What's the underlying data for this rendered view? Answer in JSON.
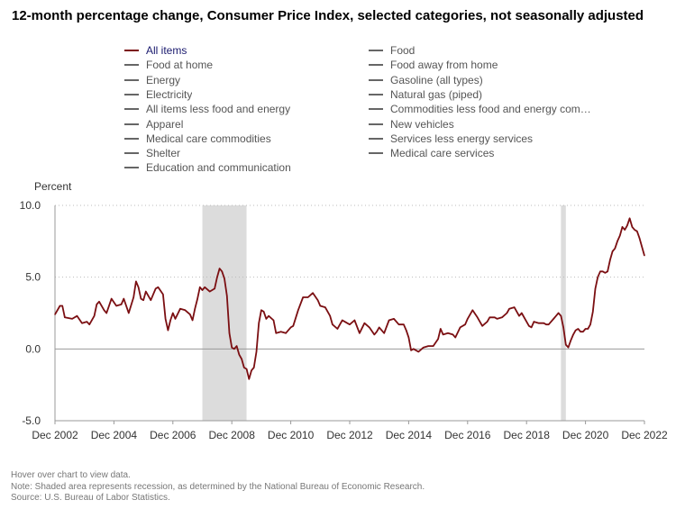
{
  "title": "12-month percentage change, Consumer Price Index, selected categories, not seasonally adjusted",
  "legend": [
    {
      "label": "All items",
      "active": true
    },
    {
      "label": "Food",
      "active": false
    },
    {
      "label": "Food at home",
      "active": false
    },
    {
      "label": "Food away from home",
      "active": false
    },
    {
      "label": "Energy",
      "active": false
    },
    {
      "label": "Gasoline (all types)",
      "active": false
    },
    {
      "label": "Electricity",
      "active": false
    },
    {
      "label": "Natural gas (piped)",
      "active": false
    },
    {
      "label": "All items less food and energy",
      "active": false
    },
    {
      "label": "Commodities less food and energy com…",
      "active": false
    },
    {
      "label": "Apparel",
      "active": false
    },
    {
      "label": "New vehicles",
      "active": false
    },
    {
      "label": "Medical care commodities",
      "active": false
    },
    {
      "label": "Services less energy services",
      "active": false
    },
    {
      "label": "Shelter",
      "active": false
    },
    {
      "label": "Medical care services",
      "active": false
    },
    {
      "label": "Education and communication",
      "active": false
    }
  ],
  "footnotes": {
    "hover": "Hover over chart to view data.",
    "note": "Note: Shaded area represents recession, as determined by the National Bureau of Economic Research.",
    "source": "Source: U.S. Bureau of Labor Statistics."
  },
  "colors": {
    "series": "#7b0f12",
    "recession": "#dcdcdc",
    "grid": "#bbbbbb"
  },
  "chart_data": {
    "type": "line",
    "ylabel": "Percent",
    "ylim": [
      -5,
      10
    ],
    "yticks": [
      "10.0",
      "5.0",
      "0.0",
      "-5.0"
    ],
    "yticks_values": [
      10,
      5,
      0,
      -5
    ],
    "xlim": [
      "2002-12",
      "2022-12"
    ],
    "xticks": [
      "Dec 2002",
      "Dec 2004",
      "Dec 2006",
      "Dec 2008",
      "Dec 2010",
      "Dec 2012",
      "Dec 2014",
      "Dec 2016",
      "Dec 2018",
      "Dec 2020",
      "Dec 2022"
    ],
    "xticks_dates": [
      "2002-12",
      "2004-12",
      "2006-12",
      "2008-12",
      "2010-12",
      "2012-12",
      "2014-12",
      "2016-12",
      "2018-12",
      "2020-12",
      "2022-12"
    ],
    "grid": "horizontal",
    "recessions": [
      [
        "2007-12",
        "2009-06"
      ],
      [
        "2020-02",
        "2020-04"
      ]
    ],
    "series": [
      {
        "name": "All items",
        "points": [
          [
            "2002-12",
            2.4
          ],
          [
            "2003-02",
            3.0
          ],
          [
            "2003-03",
            3.0
          ],
          [
            "2003-04",
            2.2
          ],
          [
            "2003-07",
            2.1
          ],
          [
            "2003-09",
            2.3
          ],
          [
            "2003-11",
            1.8
          ],
          [
            "2004-01",
            1.9
          ],
          [
            "2004-02",
            1.7
          ],
          [
            "2004-04",
            2.3
          ],
          [
            "2004-05",
            3.1
          ],
          [
            "2004-06",
            3.3
          ],
          [
            "2004-08",
            2.7
          ],
          [
            "2004-09",
            2.5
          ],
          [
            "2004-11",
            3.5
          ],
          [
            "2005-01",
            3.0
          ],
          [
            "2005-03",
            3.1
          ],
          [
            "2005-04",
            3.5
          ],
          [
            "2005-06",
            2.5
          ],
          [
            "2005-08",
            3.6
          ],
          [
            "2005-09",
            4.7
          ],
          [
            "2005-10",
            4.3
          ],
          [
            "2005-11",
            3.5
          ],
          [
            "2005-12",
            3.4
          ],
          [
            "2006-01",
            4.0
          ],
          [
            "2006-03",
            3.4
          ],
          [
            "2006-05",
            4.2
          ],
          [
            "2006-06",
            4.3
          ],
          [
            "2006-08",
            3.8
          ],
          [
            "2006-09",
            2.1
          ],
          [
            "2006-10",
            1.3
          ],
          [
            "2006-11",
            2.0
          ],
          [
            "2006-12",
            2.5
          ],
          [
            "2007-01",
            2.1
          ],
          [
            "2007-03",
            2.8
          ],
          [
            "2007-05",
            2.7
          ],
          [
            "2007-07",
            2.4
          ],
          [
            "2007-08",
            2.0
          ],
          [
            "2007-09",
            2.8
          ],
          [
            "2007-10",
            3.5
          ],
          [
            "2007-11",
            4.3
          ],
          [
            "2007-12",
            4.1
          ],
          [
            "2008-01",
            4.3
          ],
          [
            "2008-03",
            4.0
          ],
          [
            "2008-05",
            4.2
          ],
          [
            "2008-06",
            5.0
          ],
          [
            "2008-07",
            5.6
          ],
          [
            "2008-08",
            5.4
          ],
          [
            "2008-09",
            4.9
          ],
          [
            "2008-10",
            3.7
          ],
          [
            "2008-11",
            1.1
          ],
          [
            "2008-12",
            0.1
          ],
          [
            "2009-01",
            0.0
          ],
          [
            "2009-02",
            0.2
          ],
          [
            "2009-03",
            -0.4
          ],
          [
            "2009-04",
            -0.7
          ],
          [
            "2009-05",
            -1.3
          ],
          [
            "2009-06",
            -1.4
          ],
          [
            "2009-07",
            -2.1
          ],
          [
            "2009-08",
            -1.5
          ],
          [
            "2009-09",
            -1.3
          ],
          [
            "2009-10",
            -0.2
          ],
          [
            "2009-11",
            1.8
          ],
          [
            "2009-12",
            2.7
          ],
          [
            "2010-01",
            2.6
          ],
          [
            "2010-02",
            2.1
          ],
          [
            "2010-03",
            2.3
          ],
          [
            "2010-05",
            2.0
          ],
          [
            "2010-06",
            1.1
          ],
          [
            "2010-08",
            1.2
          ],
          [
            "2010-10",
            1.1
          ],
          [
            "2010-12",
            1.5
          ],
          [
            "2011-01",
            1.6
          ],
          [
            "2011-03",
            2.7
          ],
          [
            "2011-05",
            3.6
          ],
          [
            "2011-07",
            3.6
          ],
          [
            "2011-09",
            3.9
          ],
          [
            "2011-11",
            3.4
          ],
          [
            "2011-12",
            3.0
          ],
          [
            "2012-02",
            2.9
          ],
          [
            "2012-04",
            2.3
          ],
          [
            "2012-05",
            1.7
          ],
          [
            "2012-07",
            1.4
          ],
          [
            "2012-08",
            1.7
          ],
          [
            "2012-09",
            2.0
          ],
          [
            "2012-11",
            1.8
          ],
          [
            "2012-12",
            1.7
          ],
          [
            "2013-02",
            2.0
          ],
          [
            "2013-04",
            1.1
          ],
          [
            "2013-06",
            1.8
          ],
          [
            "2013-08",
            1.5
          ],
          [
            "2013-10",
            1.0
          ],
          [
            "2013-11",
            1.2
          ],
          [
            "2013-12",
            1.5
          ],
          [
            "2014-02",
            1.1
          ],
          [
            "2014-04",
            2.0
          ],
          [
            "2014-06",
            2.1
          ],
          [
            "2014-08",
            1.7
          ],
          [
            "2014-10",
            1.7
          ],
          [
            "2014-11",
            1.3
          ],
          [
            "2014-12",
            0.8
          ],
          [
            "2015-01",
            -0.1
          ],
          [
            "2015-02",
            0.0
          ],
          [
            "2015-04",
            -0.2
          ],
          [
            "2015-06",
            0.1
          ],
          [
            "2015-08",
            0.2
          ],
          [
            "2015-10",
            0.2
          ],
          [
            "2015-12",
            0.7
          ],
          [
            "2016-01",
            1.4
          ],
          [
            "2016-02",
            1.0
          ],
          [
            "2016-04",
            1.1
          ],
          [
            "2016-06",
            1.0
          ],
          [
            "2016-07",
            0.8
          ],
          [
            "2016-09",
            1.5
          ],
          [
            "2016-11",
            1.7
          ],
          [
            "2016-12",
            2.1
          ],
          [
            "2017-02",
            2.7
          ],
          [
            "2017-04",
            2.2
          ],
          [
            "2017-06",
            1.6
          ],
          [
            "2017-08",
            1.9
          ],
          [
            "2017-09",
            2.2
          ],
          [
            "2017-11",
            2.2
          ],
          [
            "2017-12",
            2.1
          ],
          [
            "2018-02",
            2.2
          ],
          [
            "2018-04",
            2.5
          ],
          [
            "2018-05",
            2.8
          ],
          [
            "2018-07",
            2.9
          ],
          [
            "2018-09",
            2.3
          ],
          [
            "2018-10",
            2.5
          ],
          [
            "2018-12",
            1.9
          ],
          [
            "2019-01",
            1.6
          ],
          [
            "2019-02",
            1.5
          ],
          [
            "2019-03",
            1.9
          ],
          [
            "2019-05",
            1.8
          ],
          [
            "2019-07",
            1.8
          ],
          [
            "2019-08",
            1.7
          ],
          [
            "2019-09",
            1.7
          ],
          [
            "2019-11",
            2.1
          ],
          [
            "2019-12",
            2.3
          ],
          [
            "2020-01",
            2.5
          ],
          [
            "2020-02",
            2.3
          ],
          [
            "2020-03",
            1.5
          ],
          [
            "2020-04",
            0.3
          ],
          [
            "2020-05",
            0.1
          ],
          [
            "2020-06",
            0.6
          ],
          [
            "2020-07",
            1.0
          ],
          [
            "2020-08",
            1.3
          ],
          [
            "2020-09",
            1.4
          ],
          [
            "2020-10",
            1.2
          ],
          [
            "2020-11",
            1.2
          ],
          [
            "2020-12",
            1.4
          ],
          [
            "2021-01",
            1.4
          ],
          [
            "2021-02",
            1.7
          ],
          [
            "2021-03",
            2.6
          ],
          [
            "2021-04",
            4.2
          ],
          [
            "2021-05",
            5.0
          ],
          [
            "2021-06",
            5.4
          ],
          [
            "2021-07",
            5.4
          ],
          [
            "2021-08",
            5.3
          ],
          [
            "2021-09",
            5.4
          ],
          [
            "2021-10",
            6.2
          ],
          [
            "2021-11",
            6.8
          ],
          [
            "2021-12",
            7.0
          ],
          [
            "2022-01",
            7.5
          ],
          [
            "2022-02",
            7.9
          ],
          [
            "2022-03",
            8.5
          ],
          [
            "2022-04",
            8.3
          ],
          [
            "2022-05",
            8.6
          ],
          [
            "2022-06",
            9.1
          ],
          [
            "2022-07",
            8.5
          ],
          [
            "2022-08",
            8.3
          ],
          [
            "2022-09",
            8.2
          ],
          [
            "2022-10",
            7.7
          ],
          [
            "2022-11",
            7.1
          ],
          [
            "2022-12",
            6.5
          ]
        ]
      }
    ]
  }
}
